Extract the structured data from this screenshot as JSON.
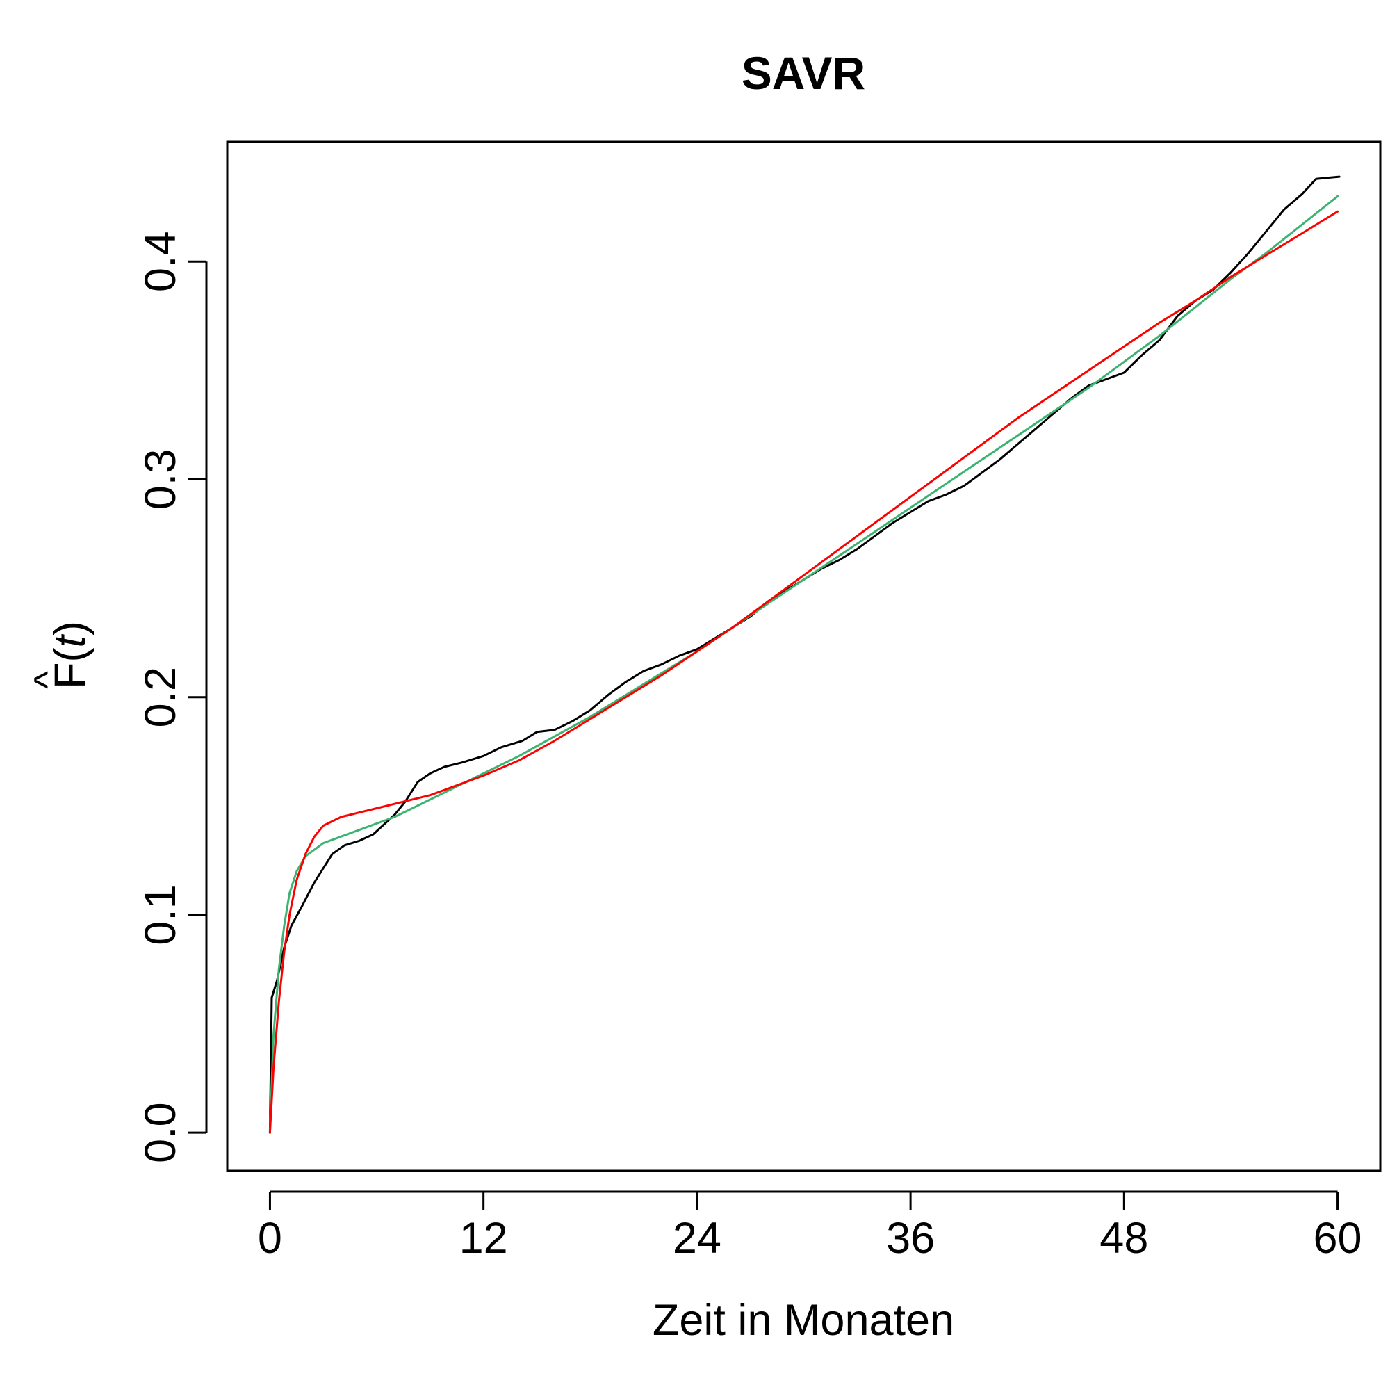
{
  "chart_data": {
    "type": "line",
    "title": "SAVR",
    "xlabel": "Zeit in Monaten",
    "ylabel": {
      "hat": "^",
      "base": "F",
      "open": "(",
      "var": "t",
      "close": ")"
    },
    "xlim": [
      -2.4,
      62.4
    ],
    "ylim": [
      -0.0175,
      0.455
    ],
    "x_ticks": [
      0,
      12,
      24,
      36,
      48,
      60
    ],
    "x_tick_labels": [
      "0",
      "12",
      "24",
      "36",
      "48",
      "60"
    ],
    "y_ticks": [
      0.0,
      0.1,
      0.2,
      0.3,
      0.4
    ],
    "y_tick_labels": [
      "0.0",
      "0.1",
      "0.2",
      "0.3",
      "0.4"
    ],
    "grid": false,
    "legend": "none",
    "series": [
      {
        "color": "#000000",
        "points": [
          [
            0,
            0
          ],
          [
            0.1,
            0.062
          ],
          [
            0.4,
            0.07
          ],
          [
            0.8,
            0.085
          ],
          [
            1.2,
            0.095
          ],
          [
            1.8,
            0.104
          ],
          [
            2.5,
            0.115
          ],
          [
            3.5,
            0.128
          ],
          [
            4.2,
            0.132
          ],
          [
            5,
            0.134
          ],
          [
            5.8,
            0.137
          ],
          [
            7,
            0.146
          ],
          [
            7.6,
            0.152
          ],
          [
            8.3,
            0.161
          ],
          [
            9,
            0.165
          ],
          [
            9.8,
            0.168
          ],
          [
            10.8,
            0.17
          ],
          [
            12,
            0.173
          ],
          [
            13,
            0.177
          ],
          [
            14.2,
            0.18
          ],
          [
            15,
            0.184
          ],
          [
            16,
            0.185
          ],
          [
            17,
            0.189
          ],
          [
            18,
            0.194
          ],
          [
            19,
            0.201
          ],
          [
            20,
            0.207
          ],
          [
            21,
            0.212
          ],
          [
            22,
            0.215
          ],
          [
            23,
            0.219
          ],
          [
            24,
            0.222
          ],
          [
            25,
            0.227
          ],
          [
            26,
            0.232
          ],
          [
            27,
            0.237
          ],
          [
            28,
            0.244
          ],
          [
            29,
            0.249
          ],
          [
            30,
            0.254
          ],
          [
            31,
            0.259
          ],
          [
            32,
            0.263
          ],
          [
            33,
            0.268
          ],
          [
            34,
            0.274
          ],
          [
            35,
            0.28
          ],
          [
            36,
            0.285
          ],
          [
            37,
            0.29
          ],
          [
            38,
            0.293
          ],
          [
            39,
            0.297
          ],
          [
            40,
            0.303
          ],
          [
            41,
            0.309
          ],
          [
            42,
            0.316
          ],
          [
            43,
            0.323
          ],
          [
            44,
            0.33
          ],
          [
            45,
            0.337
          ],
          [
            46,
            0.343
          ],
          [
            47,
            0.346
          ],
          [
            48,
            0.349
          ],
          [
            49,
            0.357
          ],
          [
            50,
            0.364
          ],
          [
            51,
            0.375
          ],
          [
            52,
            0.382
          ],
          [
            53,
            0.387
          ],
          [
            54,
            0.395
          ],
          [
            55,
            0.404
          ],
          [
            56,
            0.414
          ],
          [
            57,
            0.424
          ],
          [
            58,
            0.431
          ],
          [
            58.8,
            0.438
          ],
          [
            60.1,
            0.439
          ]
        ]
      },
      {
        "color": "#3cb371",
        "points": [
          [
            0,
            0
          ],
          [
            0.2,
            0.045
          ],
          [
            0.5,
            0.075
          ],
          [
            0.8,
            0.095
          ],
          [
            1.1,
            0.11
          ],
          [
            1.5,
            0.12
          ],
          [
            2,
            0.127
          ],
          [
            3,
            0.133
          ],
          [
            4,
            0.136
          ],
          [
            5,
            0.139
          ],
          [
            6,
            0.142
          ],
          [
            7,
            0.145
          ],
          [
            8,
            0.149
          ],
          [
            10,
            0.157
          ],
          [
            12,
            0.165
          ],
          [
            14,
            0.173
          ],
          [
            16,
            0.182
          ],
          [
            18,
            0.191
          ],
          [
            20,
            0.201
          ],
          [
            22,
            0.211
          ],
          [
            24,
            0.221
          ],
          [
            26,
            0.232
          ],
          [
            28,
            0.243
          ],
          [
            30,
            0.254
          ],
          [
            32,
            0.265
          ],
          [
            34,
            0.276
          ],
          [
            36,
            0.287
          ],
          [
            38,
            0.298
          ],
          [
            40,
            0.309
          ],
          [
            42,
            0.32
          ],
          [
            44,
            0.331
          ],
          [
            46,
            0.342
          ],
          [
            48,
            0.354
          ],
          [
            50,
            0.366
          ],
          [
            52,
            0.379
          ],
          [
            54,
            0.392
          ],
          [
            56,
            0.404
          ],
          [
            58,
            0.417
          ],
          [
            60,
            0.43
          ]
        ]
      },
      {
        "color": "#ff0000",
        "points": [
          [
            0,
            0
          ],
          [
            0.2,
            0.03
          ],
          [
            0.5,
            0.06
          ],
          [
            0.8,
            0.083
          ],
          [
            1.1,
            0.1
          ],
          [
            1.5,
            0.116
          ],
          [
            2,
            0.128
          ],
          [
            2.5,
            0.136
          ],
          [
            3,
            0.141
          ],
          [
            4,
            0.145
          ],
          [
            5,
            0.147
          ],
          [
            6,
            0.149
          ],
          [
            7,
            0.151
          ],
          [
            8,
            0.153
          ],
          [
            9,
            0.155
          ],
          [
            10,
            0.158
          ],
          [
            12,
            0.164
          ],
          [
            14,
            0.171
          ],
          [
            16,
            0.18
          ],
          [
            18,
            0.19
          ],
          [
            20,
            0.2
          ],
          [
            22,
            0.21
          ],
          [
            24,
            0.221
          ],
          [
            26,
            0.232
          ],
          [
            28,
            0.244
          ],
          [
            30,
            0.256
          ],
          [
            32,
            0.268
          ],
          [
            34,
            0.28
          ],
          [
            36,
            0.292
          ],
          [
            38,
            0.304
          ],
          [
            40,
            0.316
          ],
          [
            42,
            0.328
          ],
          [
            44,
            0.339
          ],
          [
            46,
            0.35
          ],
          [
            48,
            0.361
          ],
          [
            50,
            0.372
          ],
          [
            52,
            0.382
          ],
          [
            54,
            0.393
          ],
          [
            56,
            0.403
          ],
          [
            58,
            0.413
          ],
          [
            60,
            0.423
          ]
        ]
      }
    ]
  }
}
